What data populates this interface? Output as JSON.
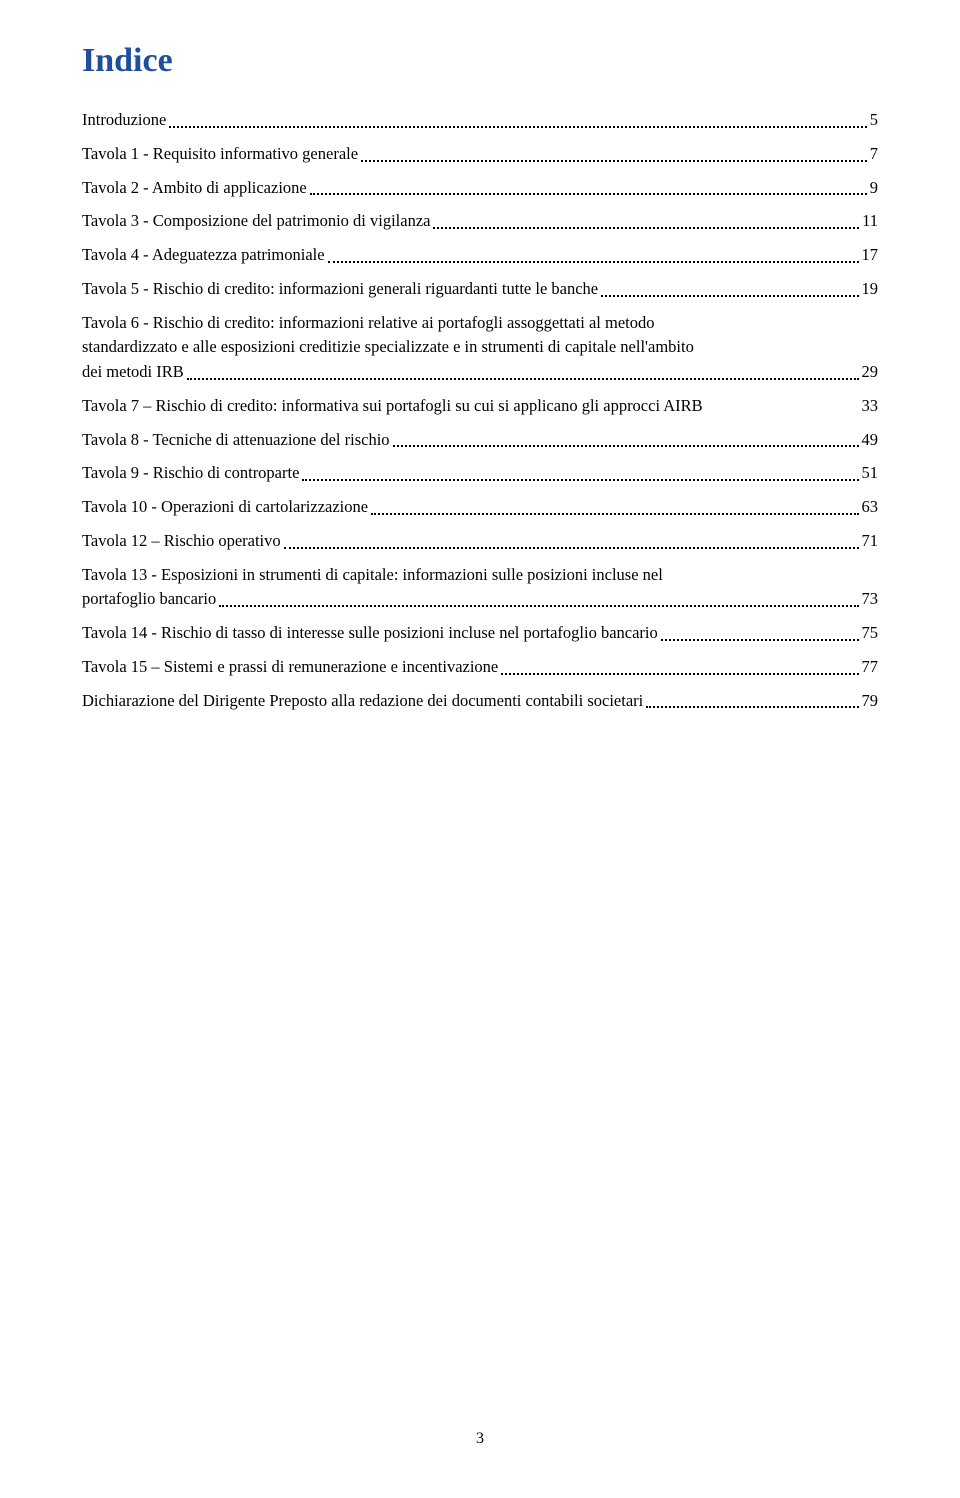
{
  "title": "Indice",
  "title_color": "#1e4e9c",
  "page_number": "3",
  "entries": [
    {
      "label": "Introduzione",
      "page": "5",
      "multiline": false,
      "dots": true
    },
    {
      "label": "Tavola 1 - Requisito informativo generale",
      "page": "7",
      "multiline": false,
      "dots": true
    },
    {
      "label": "Tavola 2 - Ambito di applicazione",
      "page": "9",
      "multiline": false,
      "dots": true
    },
    {
      "label": "Tavola 3 - Composizione del patrimonio di vigilanza",
      "page": "11",
      "multiline": false,
      "dots": true
    },
    {
      "label": "Tavola 4 - Adeguatezza patrimoniale",
      "page": "17",
      "multiline": false,
      "dots": true
    },
    {
      "label": "Tavola 5 - Rischio di credito: informazioni generali riguardanti tutte le banche",
      "page": "19",
      "multiline": false,
      "dots": true
    },
    {
      "label1": "Tavola 6 - Rischio di credito: informazioni relative ai portafogli assoggettati al metodo",
      "label2": "standardizzato e alle esposizioni creditizie specializzate e in strumenti di capitale nell'ambito",
      "label3": "dei metodi IRB",
      "page": "29",
      "multiline": true,
      "lines": 3,
      "dots": true
    },
    {
      "label": "Tavola 7 – Rischio di credito: informativa sui portafogli su cui si applicano gli approcci AIRB",
      "page": "33",
      "multiline": false,
      "dots": false
    },
    {
      "label": "Tavola 8 - Tecniche di attenuazione del rischio",
      "page": "49",
      "multiline": false,
      "dots": true
    },
    {
      "label": "Tavola 9 - Rischio di controparte",
      "page": "51",
      "multiline": false,
      "dots": true
    },
    {
      "label": "Tavola 10 - Operazioni di cartolarizzazione",
      "page": "63",
      "multiline": false,
      "dots": true
    },
    {
      "label": "Tavola 12 – Rischio operativo",
      "page": "71",
      "multiline": false,
      "dots": true
    },
    {
      "label1": "Tavola 13 - Esposizioni in strumenti di capitale: informazioni sulle posizioni incluse nel",
      "label2": "portafoglio bancario",
      "page": "73",
      "multiline": true,
      "lines": 2,
      "dots": true
    },
    {
      "label": "Tavola 14 - Rischio di tasso di interesse sulle posizioni incluse nel portafoglio bancario",
      "page": "75",
      "multiline": false,
      "dots": true
    },
    {
      "label": "Tavola 15 – Sistemi e prassi di remunerazione e incentivazione",
      "page": "77",
      "multiline": false,
      "dots": true
    },
    {
      "label": "Dichiarazione del Dirigente Preposto alla redazione dei documenti contabili societari",
      "page": "79",
      "multiline": false,
      "dots": true
    }
  ]
}
